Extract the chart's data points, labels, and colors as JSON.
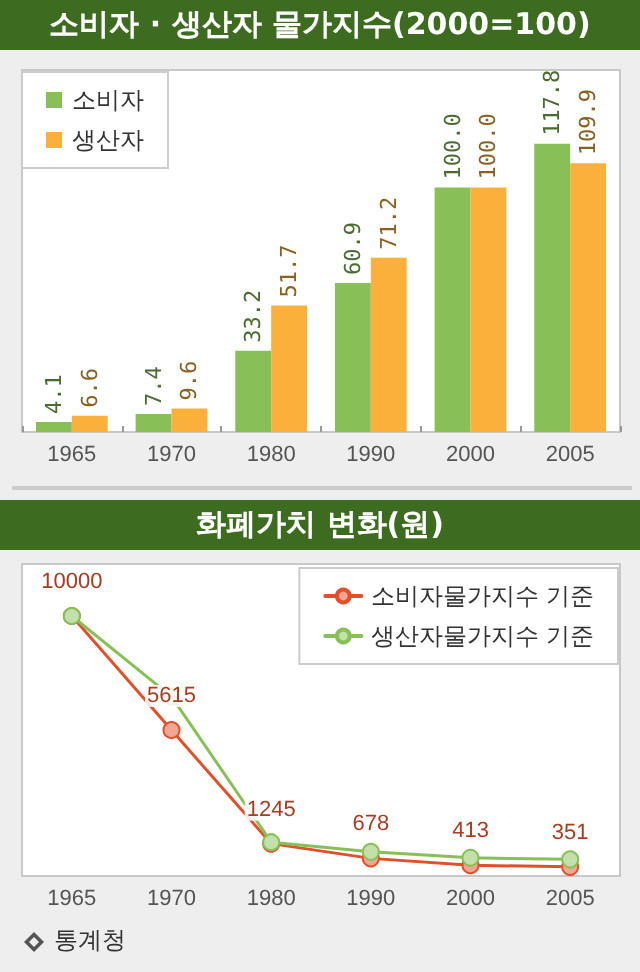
{
  "chart_data": [
    {
      "type": "bar",
      "title": "소비자 · 생산자 물가지수(2000=100)",
      "categories": [
        "1965",
        "1970",
        "1980",
        "1990",
        "2000",
        "2005"
      ],
      "series": [
        {
          "name": "소비자",
          "color": "#88c057",
          "values": [
            4.1,
            7.4,
            33.2,
            60.9,
            100.0,
            117.8
          ],
          "value_labels": [
            "4.1",
            "7.4",
            "33.2",
            "60.9",
            "100.0",
            "117.8"
          ]
        },
        {
          "name": "생산자",
          "color": "#fbb03b",
          "values": [
            6.6,
            9.6,
            51.7,
            71.2,
            100.0,
            109.9
          ],
          "value_labels": [
            "6.6",
            "9.6",
            "51.7",
            "71.2",
            "100.0",
            "109.9"
          ]
        }
      ],
      "ylim": [
        0,
        148
      ],
      "tick_labels": "x",
      "legend": "top left"
    },
    {
      "type": "line",
      "title": "화폐가치 변화(원)",
      "categories": [
        "1965",
        "1970",
        "1980",
        "1990",
        "2000",
        "2005"
      ],
      "series": [
        {
          "name": "소비자물가지수 기준",
          "color": "#e0502a",
          "values": [
            10000,
            5615,
            1245,
            678,
            413,
            351
          ],
          "value_labels": [
            "10000",
            "5615",
            "1245",
            "678",
            "413",
            "351"
          ]
        },
        {
          "name": "생산자물가지수 기준",
          "color": "#88c057",
          "values": [
            10000,
            6900,
            1300,
            930,
            700,
            640
          ]
        }
      ],
      "ylim": [
        0,
        12000
      ],
      "tick_labels": "x",
      "marker": "circle",
      "legend": "top right",
      "annotations": [
        "통계청"
      ]
    }
  ]
}
